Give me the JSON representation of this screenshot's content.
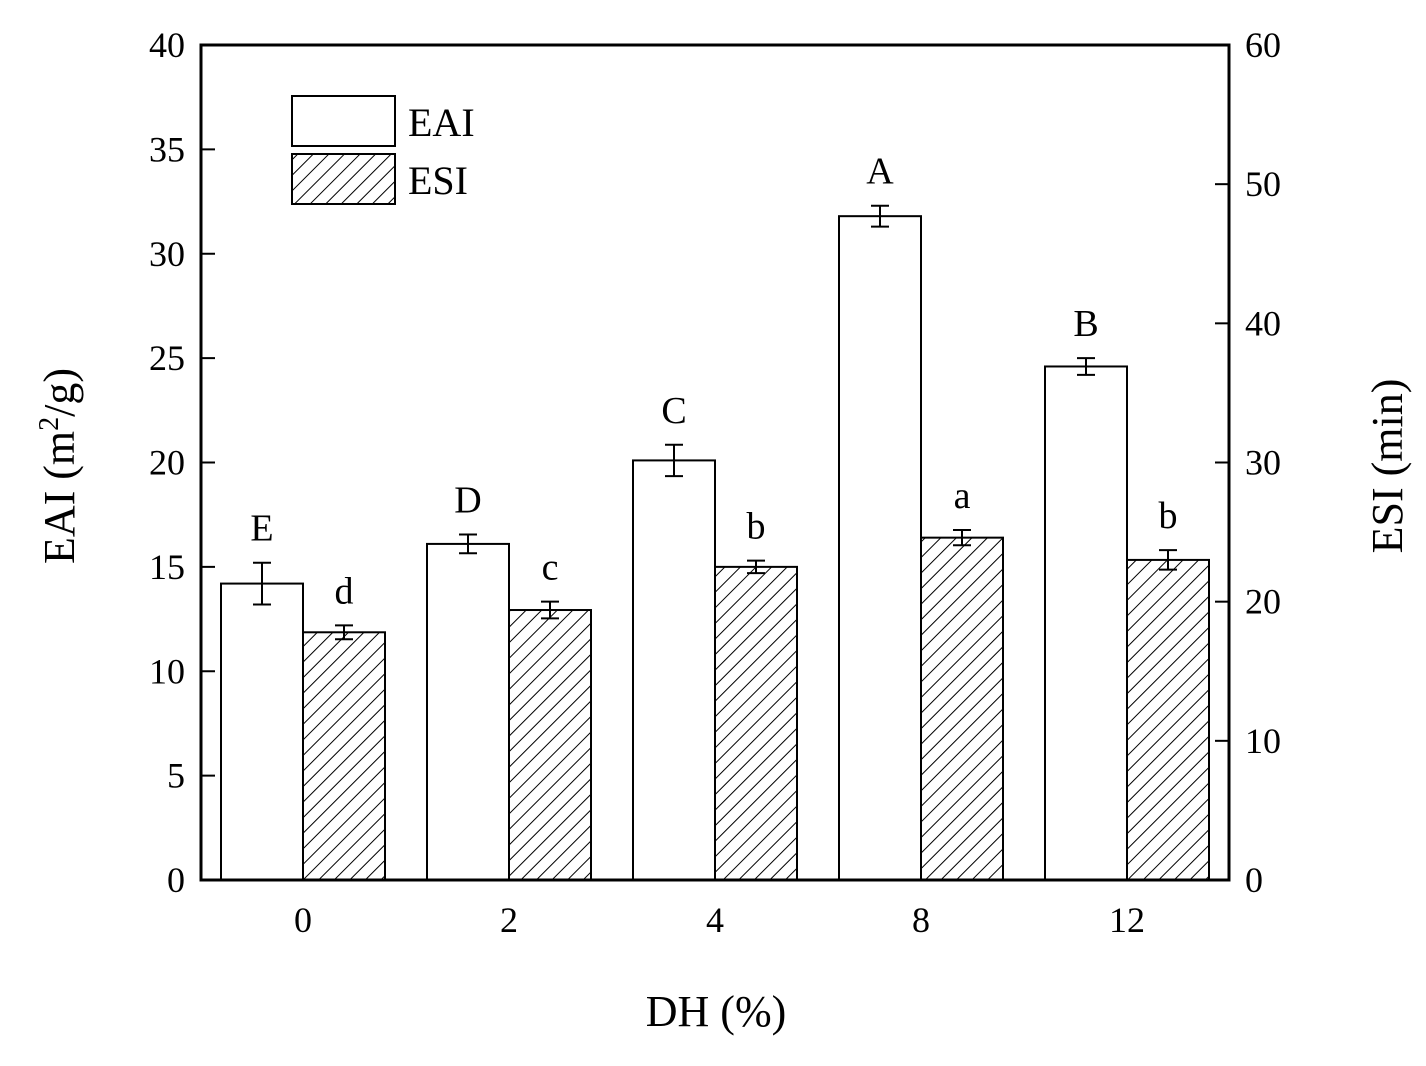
{
  "chart_data": {
    "type": "bar",
    "categories": [
      "0",
      "2",
      "4",
      "8",
      "12"
    ],
    "xlabel": "DH (%)",
    "ylabel_left": {
      "main": "EAI (m",
      "superscript": "2",
      "suffix": "/g)"
    },
    "ylabel_right": "ESI (min)",
    "ylim_left": [
      0,
      40
    ],
    "ylim_right": [
      0,
      60
    ],
    "yticks_left": [
      "0",
      "5",
      "10",
      "15",
      "20",
      "25",
      "30",
      "35",
      "40"
    ],
    "yticks_right": [
      "0",
      "10",
      "20",
      "30",
      "40",
      "50",
      "60"
    ],
    "legend_position": "top-left",
    "series": [
      {
        "name": "EAI",
        "axis": "left",
        "fill": "white",
        "values": [
          14.2,
          16.1,
          20.1,
          31.8,
          24.6
        ],
        "errors": [
          1.0,
          0.45,
          0.75,
          0.5,
          0.4
        ],
        "letters": [
          "E",
          "D",
          "C",
          "A",
          "B"
        ]
      },
      {
        "name": "ESI",
        "axis": "right",
        "fill": "hatched",
        "values": [
          17.8,
          19.4,
          22.5,
          24.6,
          23.0
        ],
        "errors": [
          0.5,
          0.6,
          0.45,
          0.55,
          0.7
        ],
        "letters": [
          "d",
          "c",
          "b",
          "a",
          "b"
        ]
      }
    ]
  }
}
